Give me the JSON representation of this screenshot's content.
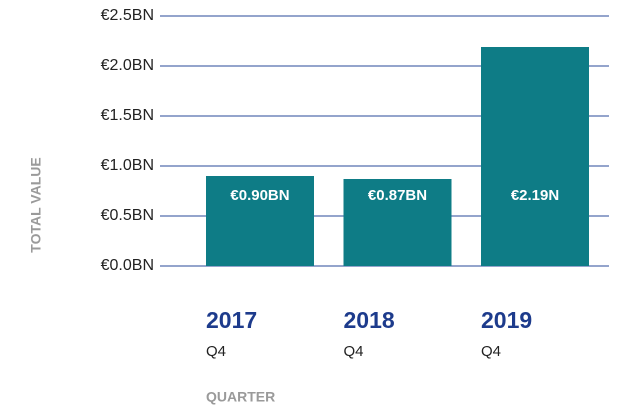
{
  "chart_data": {
    "type": "bar",
    "categories": [
      "2017",
      "2018",
      "2019"
    ],
    "category_sublabels": [
      "Q4",
      "Q4",
      "Q4"
    ],
    "values": [
      0.9,
      0.87,
      2.19
    ],
    "value_labels": [
      "€0.90BN",
      "€0.87BN",
      "€2.19N"
    ],
    "color": "#0e7c86",
    "ylim": [
      0,
      2.5
    ],
    "yticks": [
      {
        "value": 0,
        "label": "€0.0BN"
      },
      {
        "value": 0.5,
        "label": "€0.5BN"
      },
      {
        "value": 1.0,
        "label": "€1.0BN"
      },
      {
        "value": 1.5,
        "label": "€1.5BN"
      },
      {
        "value": 2.0,
        "label": "€2.0BN"
      },
      {
        "value": 2.5,
        "label": "€2.5BN"
      }
    ],
    "grid": true,
    "y_label": "TOTAL VALUE",
    "x_label": "QUARTER"
  }
}
